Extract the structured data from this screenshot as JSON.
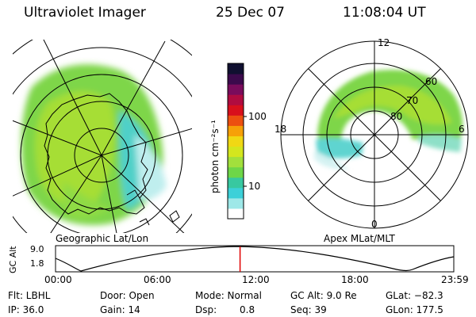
{
  "header": {
    "title": "Ultraviolet Imager",
    "date": "25 Dec 07",
    "time": "11:08:04 UT"
  },
  "left_map": {
    "caption": "Geographic Lat/Lon"
  },
  "right_map": {
    "caption": "Apex MLat/MLT",
    "mlt_labels": {
      "top": "12",
      "left": "18",
      "right": "6",
      "bottom": "0"
    },
    "lat_labels": [
      "60",
      "70",
      "80"
    ]
  },
  "colorbar": {
    "unit_label": "photon cm⁻²s⁻¹",
    "ticks": [
      {
        "value": 100,
        "label": "100"
      },
      {
        "value": 10,
        "label": "10"
      }
    ],
    "colors": [
      "#ffffff",
      "#9ee8e8",
      "#3cd0d8",
      "#38c8a0",
      "#6ed648",
      "#a2e03c",
      "#d4e61e",
      "#f0d814",
      "#f6a008",
      "#ec5010",
      "#d8101c",
      "#b00c40",
      "#7a0c5c",
      "#3c0a4c",
      "#101030"
    ]
  },
  "altitude_panel": {
    "axis_label": "GC Alt",
    "y_ticks": [
      "9.0",
      "1.8"
    ],
    "time_ticks": [
      "00:00",
      "06:00",
      "12:00",
      "18:00",
      "23:59"
    ],
    "current_time_fraction": 0.4634
  },
  "info": {
    "filter": "Flt: LBHL",
    "door": "Door: Open",
    "mode": "Mode: Normal",
    "gc_alt": "GC Alt: 9.0 Re",
    "glat": "GLat: −82.3",
    "ip": "IP: 36.0",
    "gain": "Gain: 14",
    "dsp_label": "Dsp:",
    "dsp_value": "0.8",
    "seq": "Seq: 39",
    "glon": "GLon: 177.5"
  }
}
